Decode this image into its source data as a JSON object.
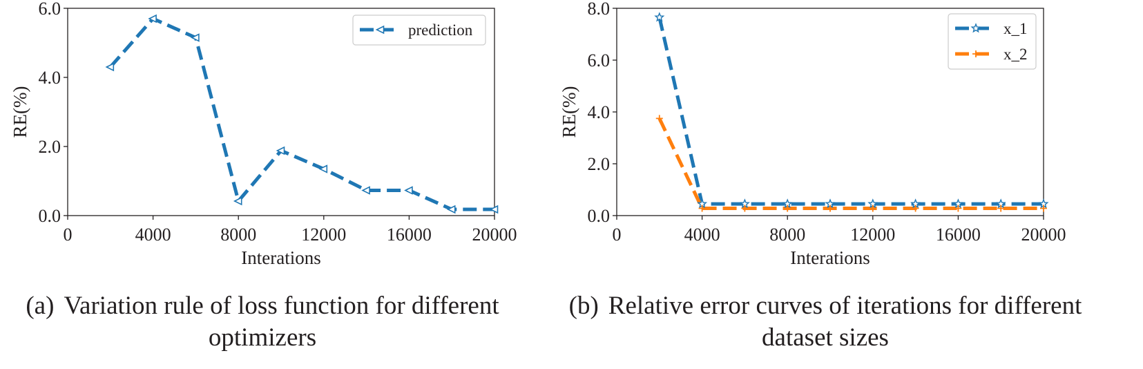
{
  "chart_data": [
    {
      "type": "line",
      "xlabel": "Interations",
      "ylabel": "RE(%)",
      "xlim": [
        0,
        20000
      ],
      "ylim": [
        0,
        6
      ],
      "xticks": [
        0,
        4000,
        8000,
        12000,
        16000,
        20000
      ],
      "xtick_labels": [
        "0",
        "4000",
        "8000",
        "12000",
        "16000",
        "20000"
      ],
      "yticks": [
        0,
        2,
        4,
        6
      ],
      "ytick_labels": [
        "0.0",
        "2.0",
        "4.0",
        "6.0"
      ],
      "legend_position": "top-right",
      "series": [
        {
          "name": "prediction",
          "color": "#1f77b4",
          "marker": "triangle-left",
          "x": [
            2000,
            4000,
            6000,
            8000,
            10000,
            12000,
            14000,
            16000,
            18000,
            20000
          ],
          "values": [
            4.3,
            5.7,
            5.15,
            0.42,
            1.88,
            1.35,
            0.73,
            0.73,
            0.18,
            0.18
          ]
        }
      ],
      "caption_label": "(a)",
      "caption_lines": [
        "Variation rule of loss function for different",
        "optimizers"
      ]
    },
    {
      "type": "line",
      "xlabel": "Interations",
      "ylabel": "RE(%)",
      "xlim": [
        0,
        20000
      ],
      "ylim": [
        0,
        8
      ],
      "xticks": [
        0,
        4000,
        8000,
        12000,
        16000,
        20000
      ],
      "xtick_labels": [
        "0",
        "4000",
        "8000",
        "12000",
        "16000",
        "20000"
      ],
      "yticks": [
        0,
        2,
        4,
        6,
        8
      ],
      "ytick_labels": [
        "0.0",
        "2.0",
        "4.0",
        "6.0",
        "8.0"
      ],
      "legend_position": "top-right",
      "series": [
        {
          "name": "x_1",
          "color": "#1f77b4",
          "marker": "star",
          "x": [
            2000,
            4000,
            6000,
            8000,
            10000,
            12000,
            14000,
            16000,
            18000,
            20000
          ],
          "values": [
            7.65,
            0.45,
            0.45,
            0.45,
            0.45,
            0.45,
            0.45,
            0.45,
            0.45,
            0.45
          ]
        },
        {
          "name": "x_2",
          "color": "#ff7f0e",
          "marker": "plus",
          "x": [
            2000,
            4000,
            6000,
            8000,
            10000,
            12000,
            14000,
            16000,
            18000,
            20000
          ],
          "values": [
            3.75,
            0.28,
            0.28,
            0.28,
            0.28,
            0.28,
            0.28,
            0.28,
            0.28,
            0.28
          ]
        }
      ],
      "caption_label": "(b)",
      "caption_lines": [
        "Relative error curves of iterations for different",
        "dataset sizes"
      ]
    }
  ]
}
